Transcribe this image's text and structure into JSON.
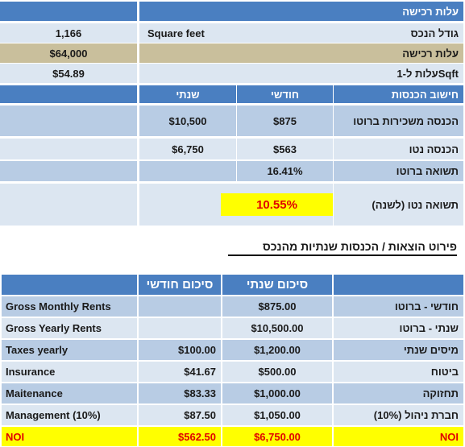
{
  "top": {
    "header": "עלות רכישה",
    "property_size": {
      "label": "גודל הנכס",
      "unit": "Square feet",
      "value": "1,166"
    },
    "purchase_cost": {
      "label": "עלות רכישה",
      "value": "$64,000"
    },
    "cost_per_sqft": {
      "label": "עלות ל-1Sqft",
      "value": "$54.89"
    }
  },
  "income": {
    "header": "חישוב הכנסות",
    "col_monthly": "חודשי",
    "col_yearly": "שנתי",
    "gross_rent": {
      "label": "הכנסה משכירות ברוטו",
      "monthly": "$875",
      "yearly": "$10,500"
    },
    "net_income": {
      "label": "הכנסה נטו",
      "monthly": "$563",
      "yearly": "$6,750"
    },
    "gross_yield": {
      "label": "תשואה ברוטו",
      "value": "16.41%"
    },
    "net_yield": {
      "label": "תשואה נטו (לשנה)",
      "value": "10.55%"
    }
  },
  "breakdown": {
    "title": "פירוט הוצאות / הכנסות שנתיות מהנכס",
    "col_yearly_summary": "סיכום שנתי",
    "col_monthly_summary": "סיכום חודשי",
    "rows": [
      {
        "en": "Gross Monthly Rents",
        "monthly": "",
        "yearly": "$875.00",
        "he": "חודשי - ברוטו"
      },
      {
        "en": "Gross Yearly Rents",
        "monthly": "",
        "yearly": "$10,500.00",
        "he": "שנתי - ברוטו"
      },
      {
        "en": "Taxes yearly",
        "monthly": "$100.00",
        "yearly": "$1,200.00",
        "he": "מיסים שנתי"
      },
      {
        "en": "Insurance",
        "monthly": "$41.67",
        "yearly": "$500.00",
        "he": "ביטוח"
      },
      {
        "en": "Maitenance",
        "monthly": "$83.33",
        "yearly": "$1,000.00",
        "he": "תחזוקה"
      },
      {
        "en": "Management (10%)",
        "monthly": "$87.50",
        "yearly": "$1,050.00",
        "he": "חברת ניהול (10%)"
      }
    ],
    "noi": {
      "en": "NOI",
      "monthly": "$562.50",
      "yearly": "$6,750.00",
      "he": "NOI"
    }
  },
  "colors": {
    "header_blue": "#4a7fc1",
    "light_blue": "#dce6f1",
    "mid_blue": "#b8cce4",
    "tan": "#c9bf9c",
    "highlight": "#ffff00",
    "red": "#e00000"
  }
}
